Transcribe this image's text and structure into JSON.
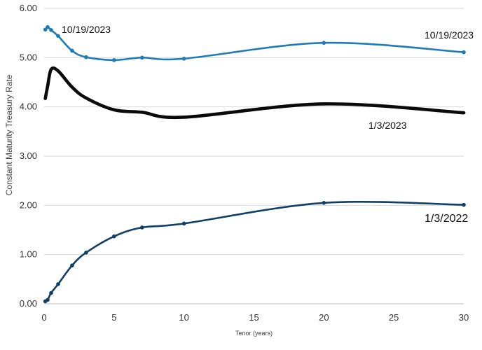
{
  "chart_data": {
    "type": "line",
    "xlabel": "Tenor (years)",
    "ylabel": "Constant Maturity Treasury Rate",
    "xlim": [
      0,
      30
    ],
    "ylim": [
      0,
      6
    ],
    "x_ticks": [
      "0",
      "5",
      "10",
      "15",
      "20",
      "25",
      "30"
    ],
    "y_ticks": [
      "0.00",
      "1.00",
      "2.00",
      "3.00",
      "4.00",
      "5.00",
      "6.00"
    ],
    "grid": "horizontal",
    "legend": "none",
    "annotations": [
      "10/19/2023",
      "10/19/2023",
      "1/3/2023",
      "1/3/2022"
    ],
    "series": [
      {
        "name": "10/19/2023",
        "color": "#1f7bb6",
        "points": [
          [
            0.083,
            5.57
          ],
          [
            0.25,
            5.62
          ],
          [
            0.5,
            5.56
          ],
          [
            1,
            5.44
          ],
          [
            2,
            5.14
          ],
          [
            3,
            5.01
          ],
          [
            5,
            4.95
          ],
          [
            7,
            5.0
          ],
          [
            10,
            4.98
          ],
          [
            20,
            5.3
          ],
          [
            30,
            5.11
          ]
        ]
      },
      {
        "name": "1/3/2023",
        "color": "#0a0a0a",
        "points": [
          [
            0.083,
            4.17
          ],
          [
            0.25,
            4.42
          ],
          [
            0.5,
            4.76
          ],
          [
            1,
            4.73
          ],
          [
            2,
            4.4
          ],
          [
            3,
            4.18
          ],
          [
            5,
            3.94
          ],
          [
            7,
            3.89
          ],
          [
            10,
            3.79
          ],
          [
            20,
            4.06
          ],
          [
            30,
            3.88
          ]
        ]
      },
      {
        "name": "1/3/2022",
        "color": "#0f3f66",
        "points": [
          [
            0.083,
            0.05
          ],
          [
            0.25,
            0.08
          ],
          [
            0.5,
            0.22
          ],
          [
            1,
            0.4
          ],
          [
            2,
            0.78
          ],
          [
            3,
            1.04
          ],
          [
            5,
            1.37
          ],
          [
            7,
            1.55
          ],
          [
            10,
            1.63
          ],
          [
            20,
            2.05
          ],
          [
            30,
            2.01
          ]
        ]
      }
    ]
  }
}
